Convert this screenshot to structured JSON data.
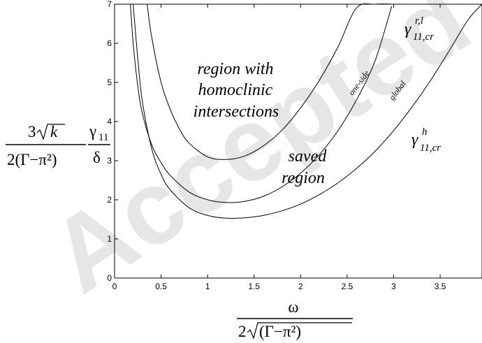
{
  "chart_data": {
    "type": "line",
    "xlim": [
      0,
      3.95
    ],
    "ylim": [
      0,
      7
    ],
    "xticks": [
      0,
      0.5,
      1,
      1.5,
      2,
      2.5,
      3,
      3.5
    ],
    "yticks": [
      0,
      1,
      2,
      3,
      4,
      5,
      6,
      7
    ],
    "grid": false,
    "xlabel": "ω / 2√(Γ−π²)",
    "ylabel": "3√k / 2(Γ−π²) · γ11 / δ",
    "annotations": {
      "upper_region": [
        "region with",
        "homoclinic",
        "intersections"
      ],
      "middle_region": [
        "saved",
        "region"
      ],
      "one_side": "one-side",
      "global": "global",
      "gamma_rl": "γ",
      "gamma_rl_sup": "r,l",
      "gamma_rl_sub": "11,cr",
      "gamma_h": "γ",
      "gamma_h_sup": "h",
      "gamma_h_sub": "11,cr"
    },
    "watermark": "Accepted",
    "series": [
      {
        "x": [
          0.17,
          0.2,
          0.25,
          0.3,
          0.4,
          0.5,
          0.6,
          0.8,
          1.0,
          1.2,
          1.4,
          1.6,
          1.8,
          2.0,
          2.2,
          2.4,
          2.6,
          2.8,
          2.98
        ],
        "y": [
          7.0,
          6.0,
          4.9,
          4.2,
          3.4,
          2.95,
          2.62,
          2.2,
          2.0,
          1.93,
          1.96,
          2.09,
          2.33,
          2.68,
          3.15,
          3.76,
          4.55,
          5.55,
          6.95
        ]
      },
      {
        "x": [
          0.2,
          0.25,
          0.3,
          0.4,
          0.5,
          0.6,
          0.8,
          1.0,
          1.2,
          1.4,
          1.6,
          1.8,
          2.0,
          2.2,
          2.4,
          2.6,
          2.8,
          3.0,
          3.2,
          3.4,
          3.6,
          3.8,
          3.95
        ],
        "y": [
          7.0,
          5.6,
          4.5,
          3.3,
          2.65,
          2.25,
          1.8,
          1.6,
          1.53,
          1.54,
          1.6,
          1.72,
          1.89,
          2.13,
          2.43,
          2.8,
          3.24,
          3.77,
          4.38,
          5.06,
          5.82,
          6.6,
          7.0
        ]
      },
      {
        "x": [
          0.35,
          0.4,
          0.5,
          0.6,
          0.7,
          0.8,
          1.0,
          1.2,
          1.4,
          1.6,
          1.8,
          2.0,
          2.2,
          2.4,
          2.6,
          2.8,
          3.0
        ],
        "y": [
          7.0,
          6.15,
          5.0,
          4.3,
          3.8,
          3.45,
          3.1,
          3.03,
          3.12,
          3.38,
          3.78,
          4.35,
          5.05,
          5.9,
          6.9,
          7.0,
          7.0
        ]
      }
    ]
  }
}
